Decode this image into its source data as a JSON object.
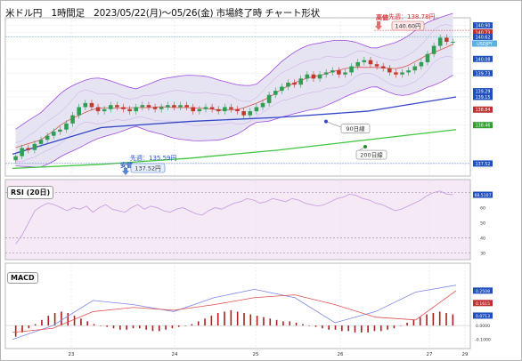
{
  "title": "米ドル円　1時間足　2023/05/22(月)〜05/26(金) 市場終了時 チャート形状",
  "symbol": "USDJPY",
  "colors": {
    "up": "#2f9d52",
    "down": "#c0392b",
    "bb_band": "#a04de0",
    "ma90": "#3346c8",
    "ma200": "#3ec63e",
    "inner_line": "#d9534f",
    "rsi_line": "#c8a0e0",
    "macd_line": "#7b86e8",
    "signal_line": "#e05050"
  },
  "annotations": {
    "high_label": "高値",
    "high_last_week": "先週：138.78円",
    "high_price": "140.60円",
    "low_label": "安値",
    "low_last_week": "先週：135.59円",
    "low_price": "137.52円",
    "ma90_label": "90日線",
    "ma200_label": "200日線"
  },
  "panels": {
    "rsi": "RSI (20日)",
    "macd": "MACD"
  },
  "chart_data": [
    {
      "type": "candlestick",
      "title": "",
      "x_ticks": [
        "23",
        "24",
        "25",
        "26",
        "27",
        "29"
      ],
      "y_ticks": [
        "140.90",
        "140.73",
        "140.62",
        "140.08",
        "139.73",
        "139.29",
        "139.15",
        "138.84",
        "138.46",
        "137.52"
      ],
      "ylim": [
        137.3,
        141.0
      ],
      "close": [
        137.7,
        137.9,
        137.85,
        138.0,
        138.1,
        138.2,
        138.3,
        138.35,
        138.5,
        138.7,
        138.9,
        139.0,
        138.9,
        138.8,
        138.85,
        138.95,
        138.9,
        138.85,
        138.8,
        138.9,
        138.95,
        138.9,
        138.85,
        138.9,
        138.95,
        138.9,
        138.95,
        138.9,
        138.8,
        138.85,
        138.9,
        138.85,
        138.8,
        138.9,
        138.85,
        138.8,
        138.7,
        138.8,
        138.9,
        139.0,
        139.2,
        139.3,
        139.4,
        139.5,
        139.45,
        139.6,
        139.7,
        139.6,
        139.7,
        139.75,
        139.8,
        139.7,
        139.75,
        139.9,
        140.0,
        140.05,
        139.95,
        139.9,
        139.85,
        139.75,
        139.7,
        139.75,
        139.8,
        139.9,
        140.0,
        140.2,
        140.4,
        140.6,
        140.5,
        140.5
      ],
      "series": [
        {
          "name": "90日線",
          "values": [
            137.75,
            138.4,
            138.55,
            138.65,
            138.8,
            139.15
          ]
        },
        {
          "name": "200日線",
          "values": [
            137.4,
            137.5,
            137.65,
            137.85,
            138.1,
            138.35
          ]
        }
      ],
      "last_price": 140.62
    },
    {
      "type": "line",
      "title": "RSI (20日)",
      "y_ticks": [
        "68.5107",
        "60",
        "50",
        "40",
        "30"
      ],
      "ylim": [
        28,
        75
      ],
      "values": [
        36,
        42,
        50,
        58,
        61,
        63,
        62,
        60,
        58,
        60,
        59,
        61,
        57,
        60,
        62,
        59,
        58,
        57,
        60,
        62,
        59,
        61,
        60,
        58,
        57,
        59,
        60,
        58,
        56,
        55,
        58,
        60,
        59,
        61,
        63,
        64,
        66,
        65,
        63,
        64,
        66,
        65,
        64,
        66,
        65,
        63,
        62,
        61,
        62,
        64,
        66,
        67,
        69,
        68,
        66,
        65,
        63,
        62,
        60,
        58,
        59,
        61,
        63,
        65,
        68,
        70,
        71,
        69,
        68.5
      ]
    },
    {
      "type": "bar",
      "title": "MACD",
      "y_ticks": [
        "0.2508",
        "0.1615",
        "0.0713",
        "0.0000",
        "-0.1000"
      ],
      "ylim": [
        -0.14,
        0.32
      ],
      "values": [
        -0.08,
        -0.05,
        -0.02,
        0.01,
        0.04,
        0.07,
        0.09,
        0.1,
        0.09,
        0.07,
        0.05,
        0.03,
        0.01,
        0,
        -0.01,
        -0.02,
        -0.03,
        -0.03,
        -0.02,
        -0.02,
        -0.03,
        -0.04,
        -0.04,
        -0.03,
        -0.02,
        -0.01,
        0,
        0.01,
        0.03,
        0.05,
        0.07,
        0.09,
        0.1,
        0.11,
        0.1,
        0.09,
        0.08,
        0.07,
        0.06,
        0.05,
        0.04,
        0.03,
        0.03,
        0.02,
        0.01,
        0,
        -0.01,
        -0.02,
        -0.03,
        -0.03,
        -0.04,
        -0.04,
        -0.05,
        -0.05,
        -0.05,
        -0.04,
        -0.04,
        -0.03,
        -0.02,
        0,
        0.02,
        0.04,
        0.06,
        0.08,
        0.09,
        0.1,
        0.09,
        0.08
      ],
      "series": [
        {
          "name": "MACD",
          "values": [
            -0.1,
            0.0,
            0.18,
            0.15,
            0.1,
            0.2,
            0.26,
            0.2,
            0.02,
            0.1,
            0.24,
            0.29
          ]
        },
        {
          "name": "Signal",
          "values": [
            -0.05,
            -0.02,
            0.1,
            0.13,
            0.11,
            0.15,
            0.2,
            0.22,
            0.15,
            0.06,
            0.04,
            0.25
          ]
        }
      ]
    }
  ]
}
